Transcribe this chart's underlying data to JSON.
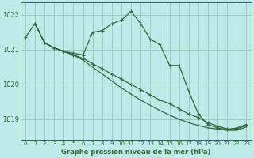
{
  "title": "Graphe pression niveau de la mer (hPa)",
  "background_color": "#beeaea",
  "grid_color": "#99ccbb",
  "line_color": "#336633",
  "xlim": [
    -0.5,
    23.5
  ],
  "ylim": [
    1018.4,
    1022.35
  ],
  "yticks": [
    1019,
    1020,
    1021,
    1022
  ],
  "xticks": [
    0,
    1,
    2,
    3,
    4,
    5,
    6,
    7,
    8,
    9,
    10,
    11,
    12,
    13,
    14,
    15,
    16,
    17,
    18,
    19,
    20,
    21,
    22,
    23
  ],
  "series1_x": [
    0,
    1,
    2,
    3,
    4,
    5,
    6,
    7,
    8,
    9,
    10,
    11,
    12,
    13,
    14,
    15,
    16,
    17,
    18,
    19,
    20,
    21,
    22,
    23
  ],
  "series1_y": [
    1021.35,
    1021.75,
    1021.2,
    1021.05,
    1020.95,
    1020.9,
    1020.85,
    1021.5,
    1021.55,
    1021.75,
    1021.85,
    1022.1,
    1021.75,
    1021.3,
    1021.15,
    1020.55,
    1020.55,
    1019.8,
    1019.15,
    1018.85,
    1018.75,
    1018.7,
    1018.75,
    1018.85
  ],
  "series2_x": [
    1,
    2,
    3,
    4,
    5,
    6,
    7,
    8,
    9,
    10,
    11,
    12,
    13,
    14,
    15,
    16,
    17,
    18,
    19,
    20,
    21,
    22,
    23
  ],
  "series2_y": [
    1021.75,
    1021.2,
    1021.05,
    1020.95,
    1020.85,
    1020.75,
    1020.6,
    1020.45,
    1020.3,
    1020.15,
    1020.0,
    1019.85,
    1019.7,
    1019.55,
    1019.45,
    1019.3,
    1019.15,
    1019.05,
    1018.9,
    1018.8,
    1018.72,
    1018.72,
    1018.82
  ],
  "series3_x": [
    1,
    2,
    3,
    4,
    5,
    6,
    7,
    8,
    9,
    10,
    11,
    12,
    13,
    14,
    15,
    16,
    17,
    18,
    19,
    20,
    21,
    22,
    23
  ],
  "series3_y": [
    1021.75,
    1021.2,
    1021.05,
    1020.95,
    1020.85,
    1020.7,
    1020.5,
    1020.3,
    1020.1,
    1019.9,
    1019.72,
    1019.55,
    1019.4,
    1019.25,
    1019.12,
    1019.0,
    1018.9,
    1018.82,
    1018.75,
    1018.72,
    1018.68,
    1018.68,
    1018.78
  ]
}
